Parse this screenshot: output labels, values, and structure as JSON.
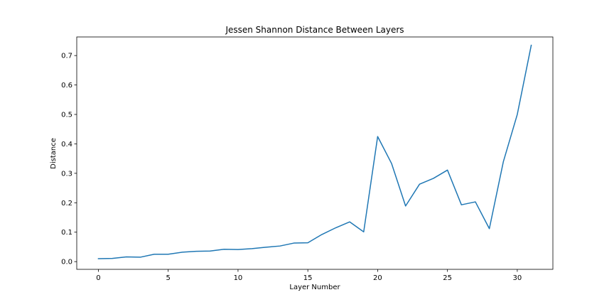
{
  "chart_data": {
    "type": "line",
    "title": "Jessen Shannon Distance Between Layers",
    "xlabel": "Layer Number",
    "ylabel": "Distance",
    "xlim": [
      -1.55,
      32.55
    ],
    "ylim": [
      -0.0262,
      0.7632
    ],
    "xticks": [
      0,
      5,
      10,
      15,
      20,
      25,
      30
    ],
    "xtick_labels": [
      "0",
      "5",
      "10",
      "15",
      "20",
      "25",
      "30"
    ],
    "yticks": [
      0.0,
      0.1,
      0.2,
      0.3,
      0.4,
      0.5,
      0.6,
      0.7
    ],
    "ytick_labels": [
      "0.0",
      "0.1",
      "0.2",
      "0.3",
      "0.4",
      "0.5",
      "0.6",
      "0.7"
    ],
    "grid": false,
    "legend": "none",
    "series": [
      {
        "color": "#1f77b4",
        "x": [
          0,
          1,
          2,
          3,
          4,
          5,
          6,
          7,
          8,
          9,
          10,
          11,
          12,
          13,
          14,
          15,
          16,
          17,
          18,
          19,
          20,
          21,
          22,
          23,
          24,
          25,
          26,
          27,
          28,
          29,
          30,
          31
        ],
        "y": [
          0.01,
          0.011,
          0.016,
          0.015,
          0.025,
          0.025,
          0.032,
          0.035,
          0.036,
          0.042,
          0.041,
          0.044,
          0.049,
          0.053,
          0.063,
          0.064,
          0.092,
          0.115,
          0.135,
          0.101,
          0.425,
          0.333,
          0.189,
          0.263,
          0.283,
          0.311,
          0.193,
          0.203,
          0.112,
          0.339,
          0.5,
          0.735
        ]
      }
    ]
  }
}
